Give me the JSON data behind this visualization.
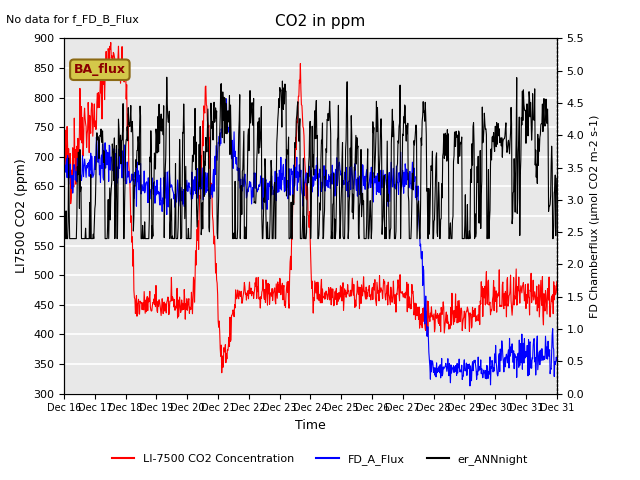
{
  "title": "CO2 in ppm",
  "top_left_text": "No data for f_FD_B_Flux",
  "ylabel_left": "LI7500 CO2 (ppm)",
  "ylabel_right": "FD Chamberflux (μmol CO2 m-2 s-1)",
  "xlabel": "Time",
  "ylim_left": [
    300,
    900
  ],
  "ylim_right": [
    0.0,
    5.5
  ],
  "x_tick_labels": [
    "Dec 16",
    "Dec 17",
    "Dec 18",
    "Dec 19",
    "Dec 20",
    "Dec 21",
    "Dec 22",
    "Dec 23",
    "Dec 24",
    "Dec 25",
    "Dec 26",
    "Dec 27",
    "Dec 28",
    "Dec 29",
    "Dec 30",
    "Dec 31"
  ],
  "legend_labels": [
    "LI-7500 CO2 Concentration",
    "FD_A_Flux",
    "er_ANNnight"
  ],
  "legend_colors": [
    "red",
    "blue",
    "black"
  ],
  "box_label": "BA_flux",
  "box_facecolor": "#d4c84a",
  "box_edgecolor": "#8b6914",
  "bg_color": "#e8e8e8",
  "grid_color": "white",
  "n_points": 960
}
